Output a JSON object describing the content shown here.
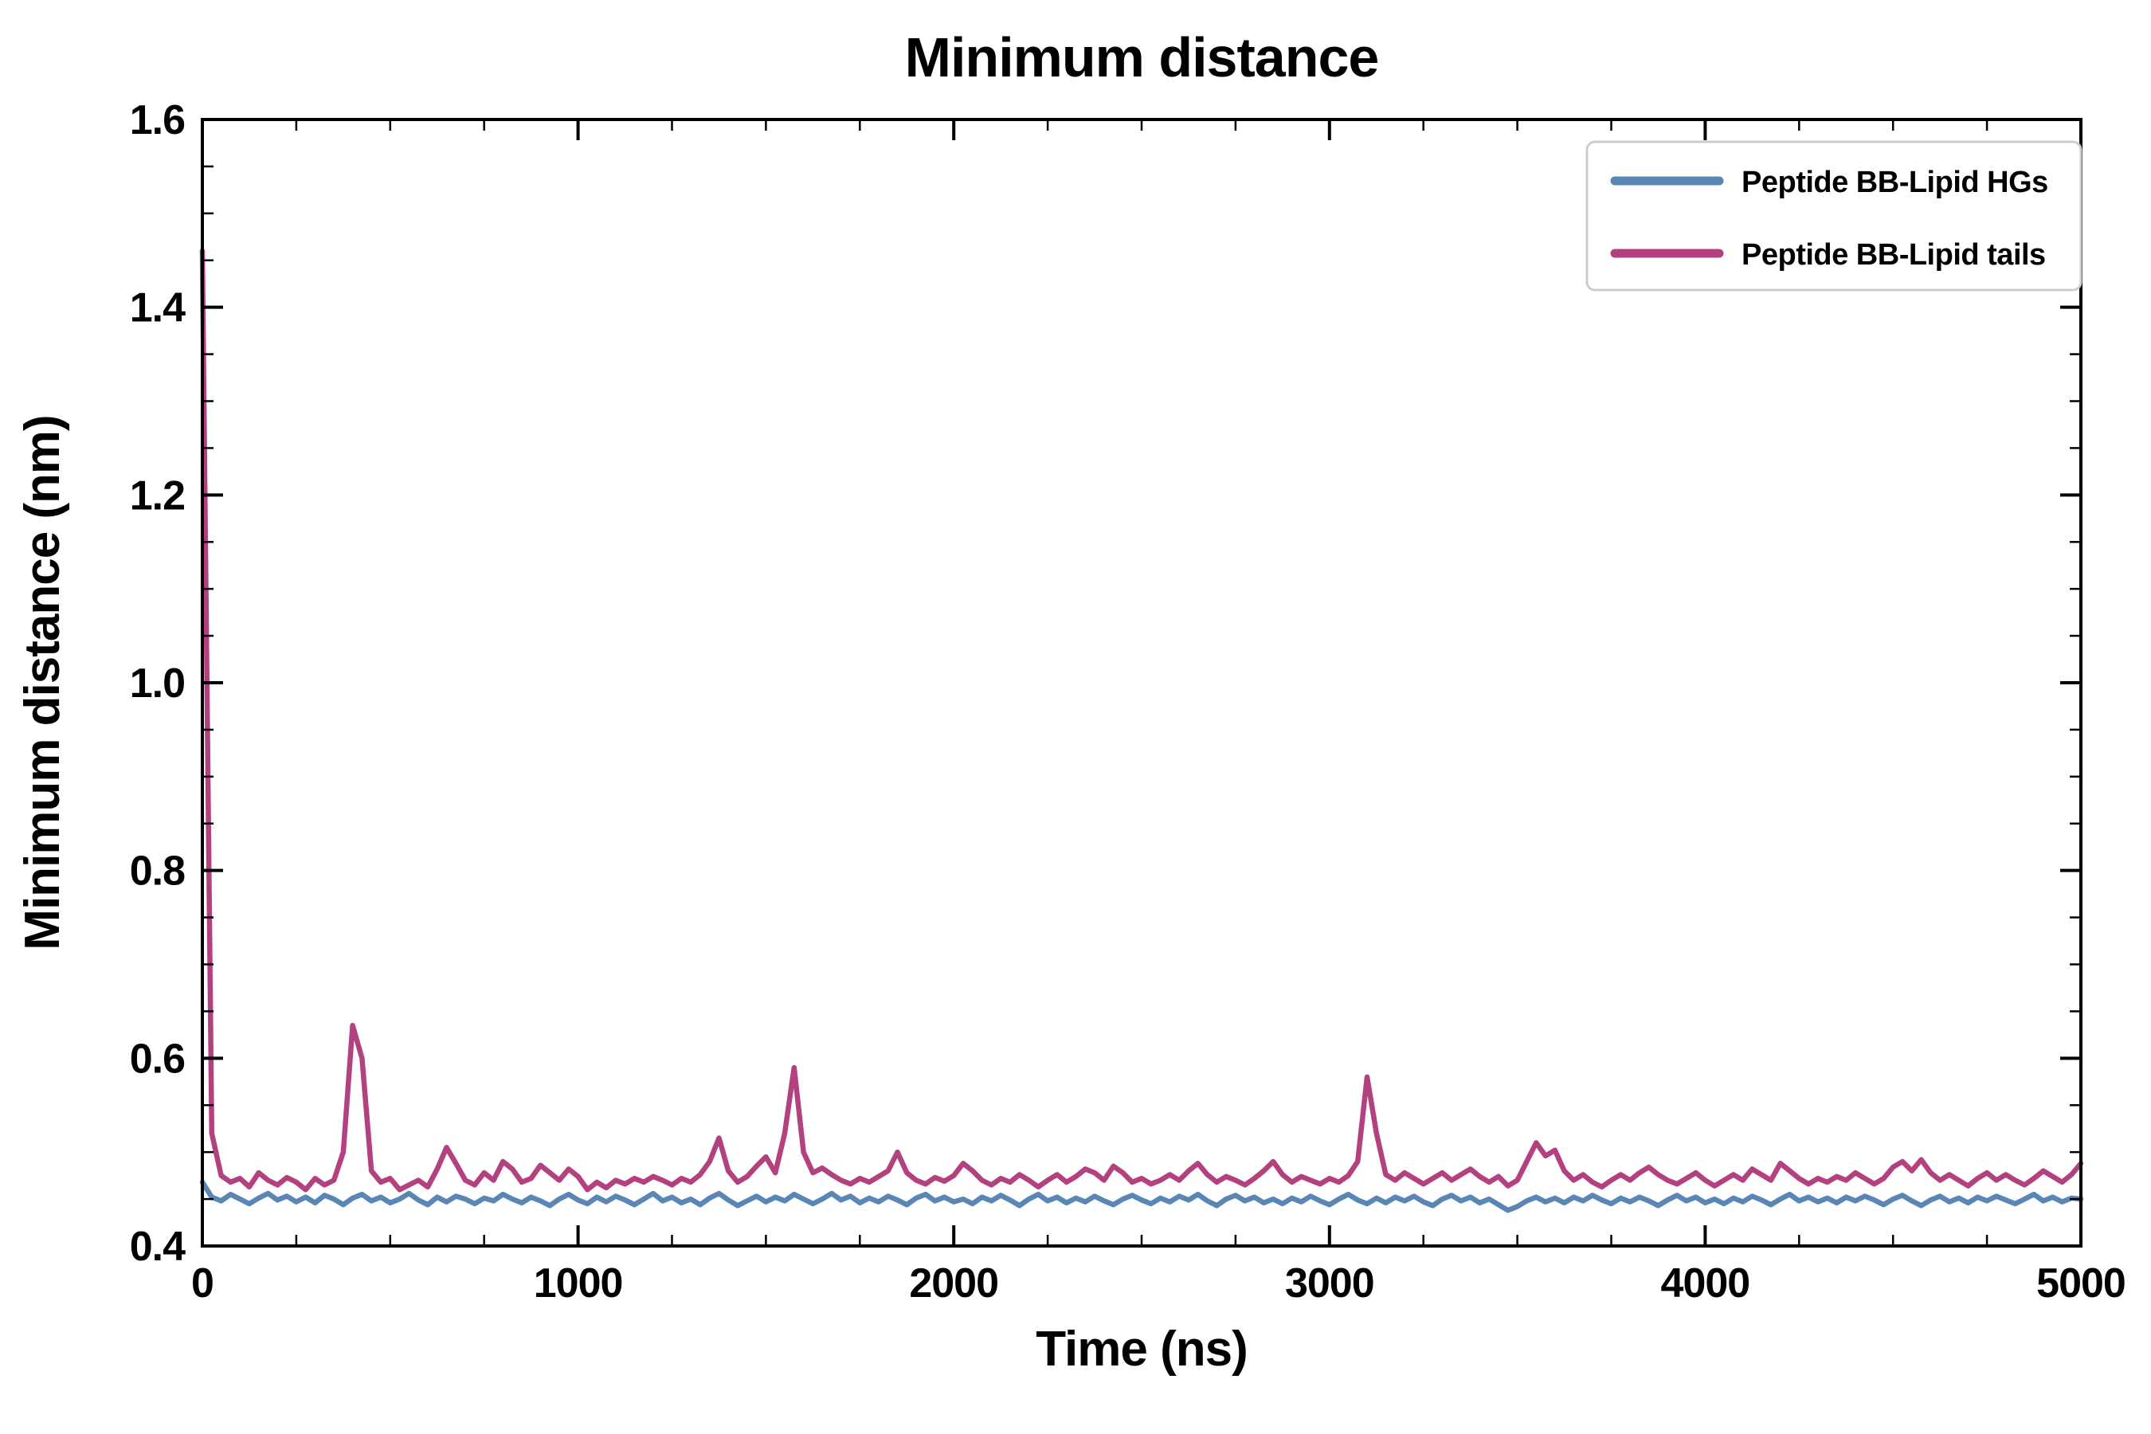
{
  "page": {
    "background_color": "#ffffff"
  },
  "chart_data": {
    "type": "line",
    "title": "Minimum distance",
    "xlabel": "Time (ns)",
    "ylabel": "Minimum distance (nm)",
    "xlim": [
      0,
      5000
    ],
    "ylim": [
      0.4,
      1.6
    ],
    "x_ticks": [
      0,
      1000,
      2000,
      3000,
      4000,
      5000
    ],
    "y_ticks": [
      0.4,
      0.6,
      0.8,
      1.0,
      1.2,
      1.4,
      1.6
    ],
    "x_minor_step": 250,
    "y_minor_step": 0.05,
    "grid": false,
    "legend_position": "upper right",
    "x_step": 25,
    "series": [
      {
        "name": "Peptide BB-Lipid HGs",
        "color": "#5a86b5",
        "values": [
          0.468,
          0.452,
          0.448,
          0.455,
          0.45,
          0.445,
          0.451,
          0.456,
          0.449,
          0.453,
          0.447,
          0.452,
          0.446,
          0.454,
          0.45,
          0.444,
          0.451,
          0.455,
          0.448,
          0.452,
          0.446,
          0.45,
          0.456,
          0.449,
          0.444,
          0.452,
          0.447,
          0.453,
          0.45,
          0.445,
          0.451,
          0.448,
          0.455,
          0.45,
          0.446,
          0.452,
          0.448,
          0.443,
          0.45,
          0.455,
          0.449,
          0.445,
          0.452,
          0.447,
          0.453,
          0.449,
          0.444,
          0.45,
          0.456,
          0.448,
          0.452,
          0.446,
          0.45,
          0.444,
          0.451,
          0.456,
          0.449,
          0.443,
          0.448,
          0.453,
          0.447,
          0.452,
          0.448,
          0.455,
          0.45,
          0.445,
          0.45,
          0.456,
          0.449,
          0.453,
          0.446,
          0.451,
          0.447,
          0.453,
          0.449,
          0.444,
          0.451,
          0.455,
          0.448,
          0.452,
          0.447,
          0.45,
          0.445,
          0.452,
          0.448,
          0.454,
          0.449,
          0.443,
          0.45,
          0.455,
          0.448,
          0.452,
          0.446,
          0.451,
          0.447,
          0.453,
          0.448,
          0.444,
          0.45,
          0.454,
          0.449,
          0.445,
          0.451,
          0.447,
          0.453,
          0.449,
          0.455,
          0.448,
          0.443,
          0.45,
          0.454,
          0.448,
          0.452,
          0.446,
          0.45,
          0.445,
          0.451,
          0.447,
          0.453,
          0.448,
          0.444,
          0.45,
          0.455,
          0.449,
          0.445,
          0.451,
          0.446,
          0.452,
          0.448,
          0.453,
          0.447,
          0.443,
          0.45,
          0.454,
          0.448,
          0.452,
          0.446,
          0.45,
          0.444,
          0.438,
          0.442,
          0.448,
          0.452,
          0.447,
          0.451,
          0.446,
          0.452,
          0.448,
          0.454,
          0.449,
          0.445,
          0.451,
          0.447,
          0.452,
          0.448,
          0.443,
          0.449,
          0.454,
          0.448,
          0.452,
          0.446,
          0.45,
          0.445,
          0.451,
          0.447,
          0.453,
          0.449,
          0.444,
          0.45,
          0.455,
          0.448,
          0.452,
          0.447,
          0.451,
          0.446,
          0.452,
          0.448,
          0.453,
          0.449,
          0.444,
          0.45,
          0.454,
          0.448,
          0.443,
          0.449,
          0.453,
          0.447,
          0.451,
          0.446,
          0.452,
          0.448,
          0.453,
          0.449,
          0.445,
          0.45,
          0.455,
          0.448,
          0.452,
          0.447,
          0.451,
          0.45
        ]
      },
      {
        "name": "Peptide BB-Lipid tails",
        "color": "#b34180",
        "values": [
          1.46,
          0.52,
          0.475,
          0.468,
          0.472,
          0.463,
          0.478,
          0.47,
          0.465,
          0.473,
          0.468,
          0.46,
          0.472,
          0.465,
          0.47,
          0.5,
          0.635,
          0.6,
          0.48,
          0.468,
          0.472,
          0.46,
          0.465,
          0.47,
          0.463,
          0.482,
          0.505,
          0.488,
          0.47,
          0.465,
          0.478,
          0.47,
          0.49,
          0.482,
          0.468,
          0.472,
          0.486,
          0.478,
          0.47,
          0.482,
          0.474,
          0.46,
          0.468,
          0.462,
          0.47,
          0.466,
          0.472,
          0.468,
          0.474,
          0.47,
          0.465,
          0.472,
          0.468,
          0.476,
          0.49,
          0.515,
          0.48,
          0.468,
          0.474,
          0.485,
          0.495,
          0.478,
          0.52,
          0.59,
          0.5,
          0.478,
          0.483,
          0.476,
          0.47,
          0.466,
          0.472,
          0.468,
          0.474,
          0.48,
          0.5,
          0.478,
          0.47,
          0.466,
          0.473,
          0.469,
          0.475,
          0.488,
          0.48,
          0.47,
          0.465,
          0.472,
          0.468,
          0.476,
          0.47,
          0.463,
          0.47,
          0.476,
          0.468,
          0.474,
          0.482,
          0.478,
          0.47,
          0.485,
          0.478,
          0.468,
          0.472,
          0.466,
          0.47,
          0.476,
          0.47,
          0.48,
          0.488,
          0.476,
          0.468,
          0.474,
          0.47,
          0.465,
          0.472,
          0.48,
          0.49,
          0.476,
          0.468,
          0.474,
          0.47,
          0.466,
          0.472,
          0.468,
          0.475,
          0.49,
          0.58,
          0.52,
          0.476,
          0.47,
          0.478,
          0.472,
          0.466,
          0.472,
          0.478,
          0.47,
          0.476,
          0.482,
          0.474,
          0.468,
          0.474,
          0.464,
          0.47,
          0.49,
          0.51,
          0.496,
          0.502,
          0.48,
          0.47,
          0.476,
          0.468,
          0.463,
          0.47,
          0.476,
          0.47,
          0.478,
          0.484,
          0.476,
          0.47,
          0.466,
          0.472,
          0.478,
          0.47,
          0.464,
          0.47,
          0.476,
          0.47,
          0.482,
          0.476,
          0.47,
          0.488,
          0.48,
          0.472,
          0.466,
          0.472,
          0.468,
          0.474,
          0.47,
          0.478,
          0.472,
          0.466,
          0.472,
          0.484,
          0.49,
          0.48,
          0.492,
          0.478,
          0.47,
          0.476,
          0.47,
          0.464,
          0.472,
          0.478,
          0.47,
          0.476,
          0.47,
          0.465,
          0.472,
          0.48,
          0.474,
          0.468,
          0.476,
          0.488
        ]
      }
    ]
  }
}
